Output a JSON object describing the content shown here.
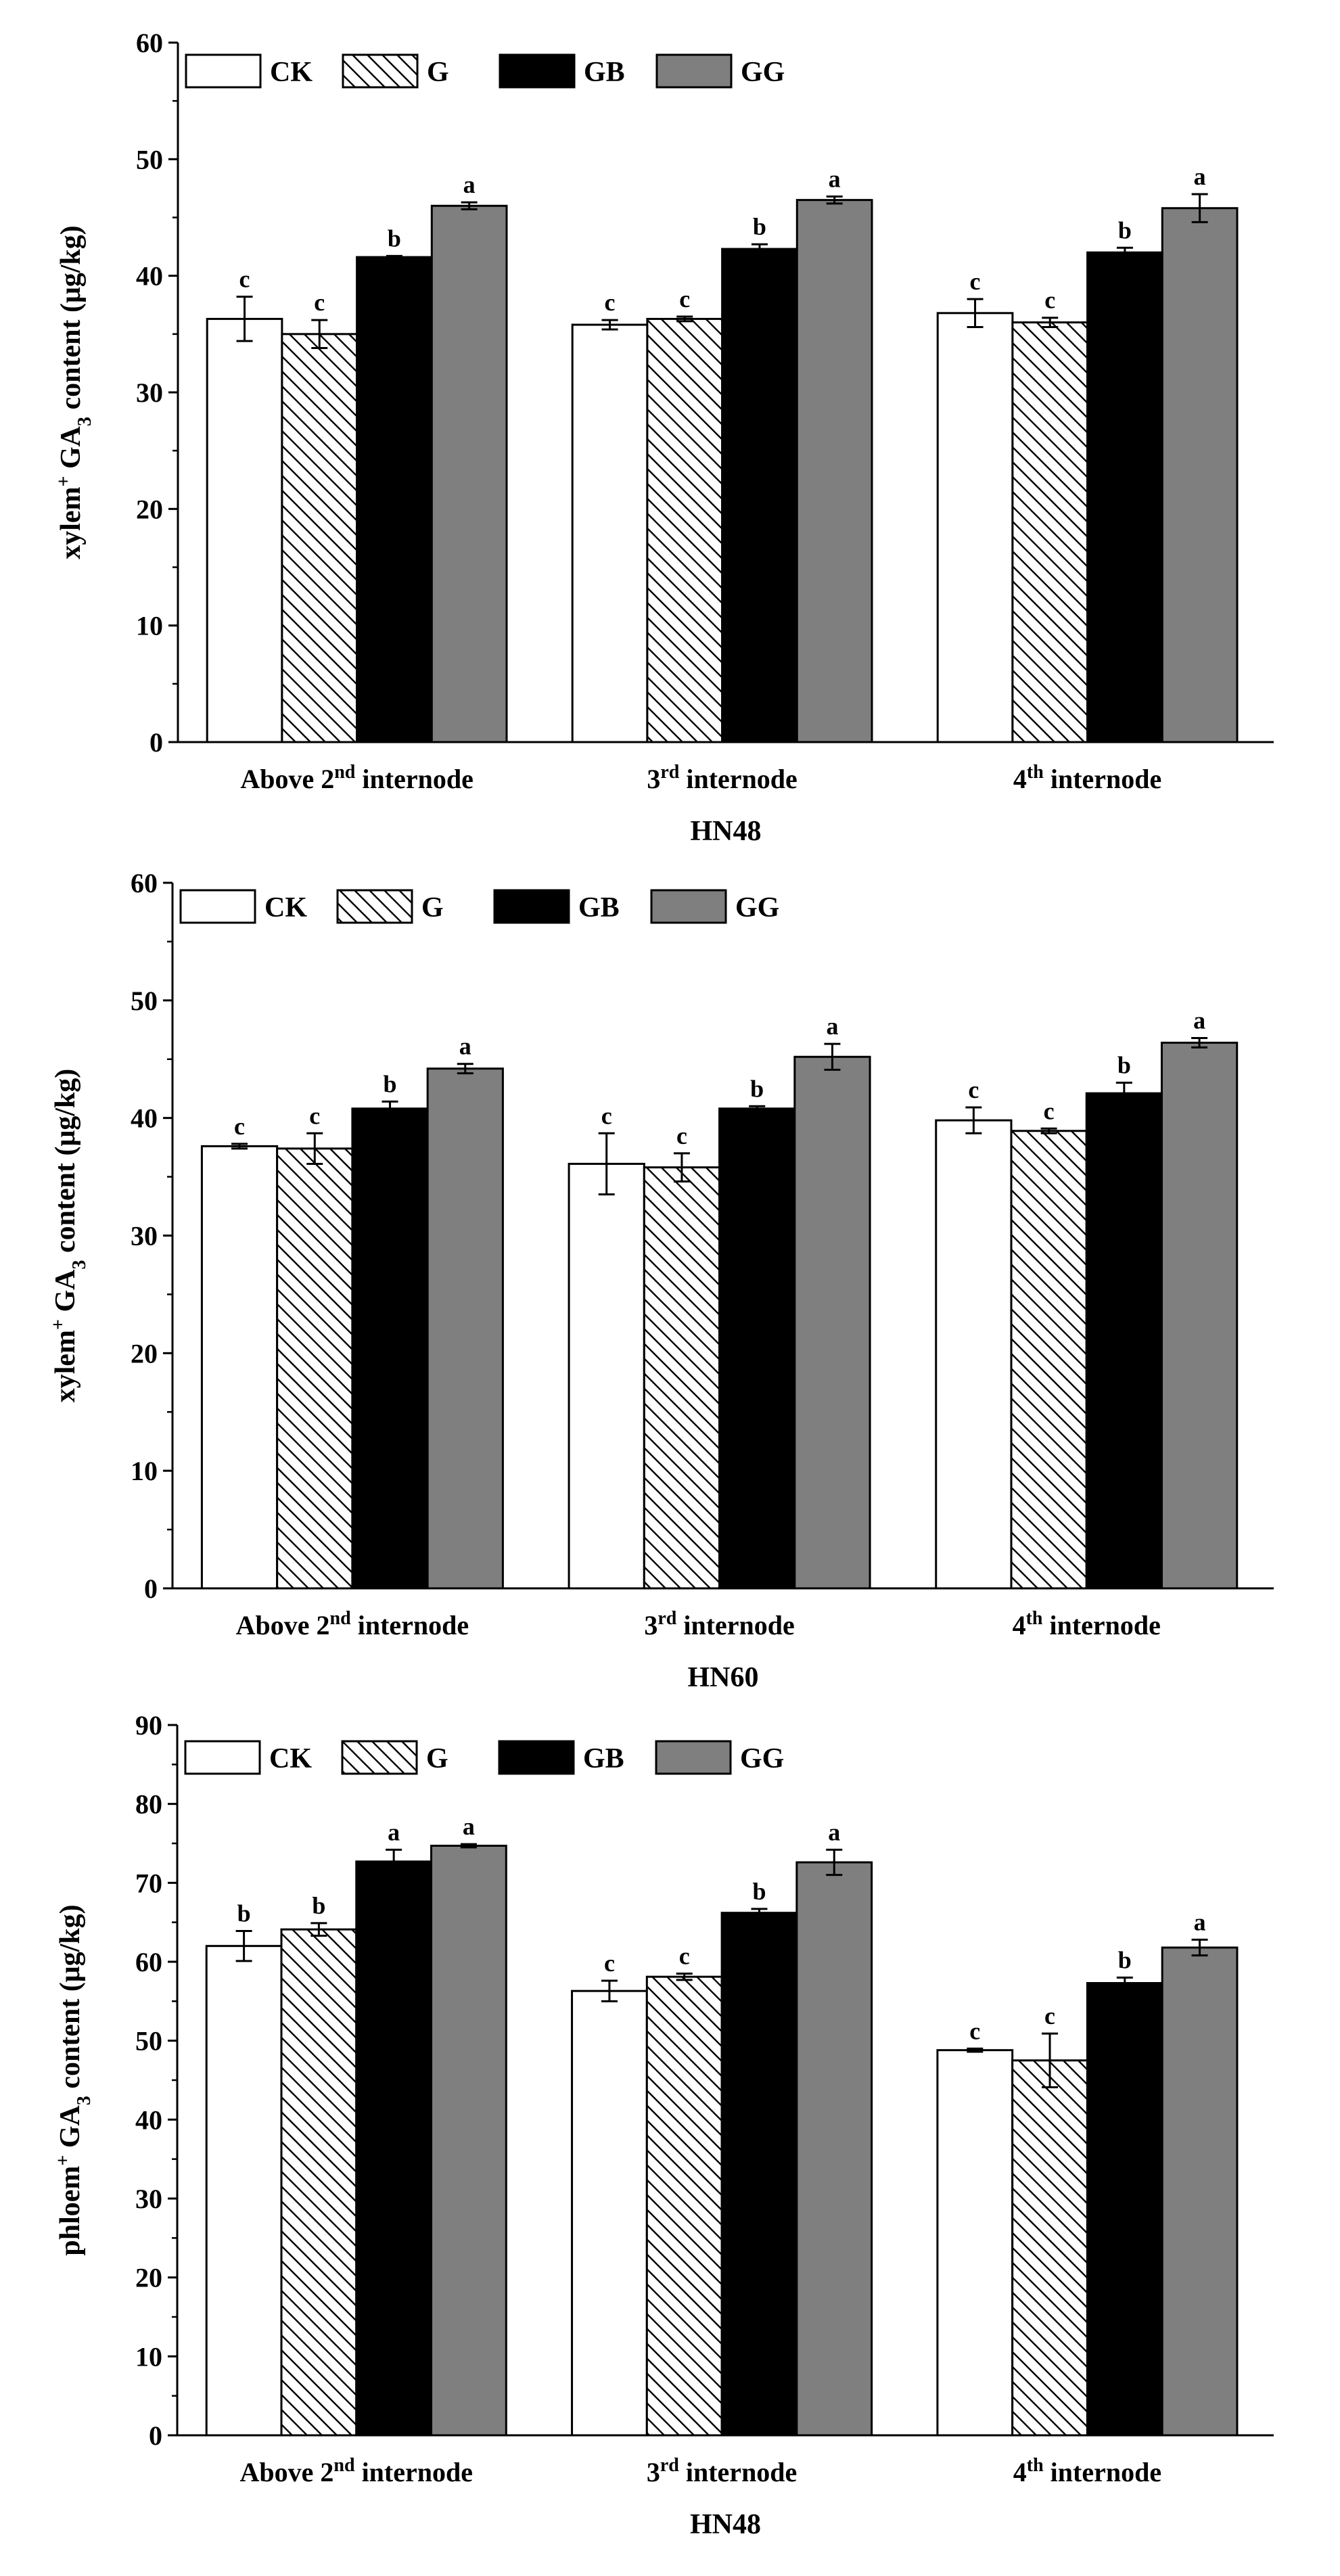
{
  "chart_data": [
    {
      "type": "bar",
      "xlabel": "HN48",
      "ylabel": {
        "pre": "xylem",
        "sup": "+",
        "mid": " GA",
        "sub": "3",
        "post": " content (μg/kg)"
      },
      "ylim": [
        0,
        60
      ],
      "yticks": [
        0,
        10,
        20,
        30,
        40,
        50,
        60
      ],
      "categories": [
        {
          "main": "Above 2",
          "sup": "nd",
          "rest": " internode"
        },
        {
          "main": "3",
          "sup": "rd",
          "rest": " internode"
        },
        {
          "main": "4",
          "sup": "th",
          "rest": " internode"
        }
      ],
      "series": [
        {
          "name": "CK",
          "style": "white",
          "values": [
            36.3,
            35.8,
            36.8
          ],
          "errors": [
            1.9,
            0.4,
            1.2
          ],
          "letters": [
            "c",
            "c",
            "c"
          ]
        },
        {
          "name": "G",
          "style": "hatch",
          "values": [
            35.0,
            36.3,
            36.0
          ],
          "errors": [
            1.2,
            0.2,
            0.4
          ],
          "letters": [
            "c",
            "c",
            "c"
          ]
        },
        {
          "name": "GB",
          "style": "black",
          "values": [
            41.6,
            42.3,
            42.0
          ],
          "errors": [
            0.1,
            0.4,
            0.4
          ],
          "letters": [
            "b",
            "b",
            "b"
          ]
        },
        {
          "name": "GG",
          "style": "gray",
          "values": [
            46.0,
            46.5,
            45.8
          ],
          "errors": [
            0.3,
            0.3,
            1.2
          ],
          "letters": [
            "a",
            "a",
            "a"
          ]
        }
      ]
    },
    {
      "type": "bar",
      "xlabel": "HN60",
      "ylabel": {
        "pre": "xylem",
        "sup": "+",
        "mid": " GA",
        "sub": "3",
        "post": " content (μg/kg)"
      },
      "ylim": [
        0,
        60
      ],
      "yticks": [
        0,
        10,
        20,
        30,
        40,
        50,
        60
      ],
      "categories": [
        {
          "main": "Above 2",
          "sup": "nd",
          "rest": " internode"
        },
        {
          "main": "3",
          "sup": "rd",
          "rest": " internode"
        },
        {
          "main": "4",
          "sup": "th",
          "rest": " internode"
        }
      ],
      "series": [
        {
          "name": "CK",
          "style": "white",
          "values": [
            37.6,
            36.1,
            39.8
          ],
          "errors": [
            0.2,
            2.6,
            1.1
          ],
          "letters": [
            "c",
            "c",
            "c"
          ]
        },
        {
          "name": "G",
          "style": "hatch",
          "values": [
            37.4,
            35.8,
            38.9
          ],
          "errors": [
            1.3,
            1.2,
            0.2
          ],
          "letters": [
            "c",
            "c",
            "c"
          ]
        },
        {
          "name": "GB",
          "style": "black",
          "values": [
            40.8,
            40.8,
            42.1
          ],
          "errors": [
            0.6,
            0.2,
            0.9
          ],
          "letters": [
            "b",
            "b",
            "b"
          ]
        },
        {
          "name": "GG",
          "style": "gray",
          "values": [
            44.2,
            45.2,
            46.4
          ],
          "errors": [
            0.4,
            1.1,
            0.4
          ],
          "letters": [
            "a",
            "a",
            "a"
          ]
        }
      ]
    },
    {
      "type": "bar",
      "xlabel": "HN48",
      "ylabel": {
        "pre": "phloem",
        "sup": "+",
        "mid": " GA",
        "sub": "3",
        "post": " content (μg/kg)"
      },
      "ylim": [
        0,
        90
      ],
      "yticks": [
        0,
        10,
        20,
        30,
        40,
        50,
        60,
        70,
        80,
        90
      ],
      "categories": [
        {
          "main": "Above 2",
          "sup": "nd",
          "rest": " internode"
        },
        {
          "main": "3",
          "sup": "rd",
          "rest": " internode"
        },
        {
          "main": "4",
          "sup": "th",
          "rest": " internode"
        }
      ],
      "series": [
        {
          "name": "CK",
          "style": "white",
          "values": [
            62.0,
            56.3,
            48.8
          ],
          "errors": [
            1.9,
            1.3,
            0.2
          ],
          "letters": [
            "b",
            "c",
            "c"
          ]
        },
        {
          "name": "G",
          "style": "hatch",
          "values": [
            64.1,
            58.1,
            47.5
          ],
          "errors": [
            0.8,
            0.4,
            3.4
          ],
          "letters": [
            "b",
            "c",
            "c"
          ]
        },
        {
          "name": "GB",
          "style": "black",
          "values": [
            72.7,
            66.2,
            57.3
          ],
          "errors": [
            1.5,
            0.5,
            0.7
          ],
          "letters": [
            "a",
            "b",
            "b"
          ]
        },
        {
          "name": "GG",
          "style": "gray",
          "values": [
            74.7,
            72.6,
            61.8
          ],
          "errors": [
            0.2,
            1.6,
            1.0
          ],
          "letters": [
            "a",
            "a",
            "a"
          ]
        }
      ]
    }
  ]
}
